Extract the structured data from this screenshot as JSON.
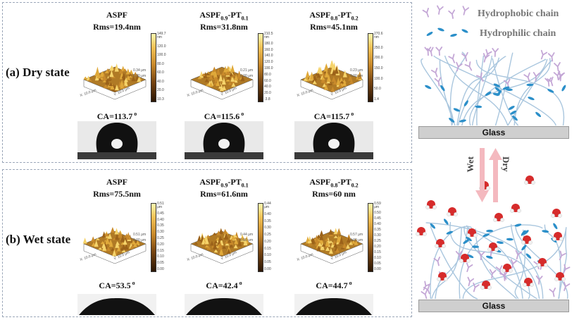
{
  "dry": {
    "label": "(a) Dry state",
    "samples": [
      {
        "name": "ASPF",
        "sub1": "",
        "mid": "",
        "sub2": "",
        "rms": "Rms=19.4nm",
        "ca": "CA=113.7",
        "scale_top": "149.7 nm",
        "ticks": [
          "120.0",
          "100.0",
          "80.0",
          "60.0",
          "40.0",
          "20.0",
          "10.3"
        ],
        "z": "0.34 μm",
        "z0": "0.00 μm",
        "ax": "X: 10.0 μm",
        "ay": "Y: 10.0 μm"
      },
      {
        "name": "ASPF",
        "sub1": "0.9",
        "mid": "-PT",
        "sub2": "0.1",
        "rms": "Rms=31.8nm",
        "ca": "CA=115.6",
        "scale_top": "210.5 nm",
        "ticks": [
          "180.0",
          "160.0",
          "140.0",
          "120.0",
          "100.0",
          "80.0",
          "60.0",
          "40.0",
          "20.0",
          "-3.8"
        ],
        "z": "0.21 μm",
        "z0": "0.00 μm",
        "ax": "X: 10.0 μm",
        "ay": "Y: 10.0 μm"
      },
      {
        "name": "ASPF",
        "sub1": "0.8",
        "mid": "-PT",
        "sub2": "0.2",
        "rms": "Rms=45.1nm",
        "ca": "CA=115.7",
        "scale_top": "270.6 nm",
        "ticks": [
          "250.0",
          "200.0",
          "150.0",
          "100.0",
          "50.0",
          "1.4"
        ],
        "z": "0.23 μm",
        "z0": "0.00 μm",
        "ax": "X: 10.0 μm",
        "ay": "Y: 10.0 μm"
      }
    ]
  },
  "wet": {
    "label": "(b) Wet state",
    "samples": [
      {
        "name": "ASPF",
        "sub1": "",
        "mid": "",
        "sub2": "",
        "rms": "Rms=75.5nm",
        "ca": "CA=53.5",
        "scale_top": "0.51 μm",
        "ticks": [
          "0.45",
          "0.40",
          "0.35",
          "0.30",
          "0.25",
          "0.20",
          "0.15",
          "0.10",
          "0.05",
          "0.00"
        ],
        "z": "0.51 μm",
        "z0": "0.00 μm",
        "ax": "X: 10.0 μm",
        "ay": "Y: 10.0 μm"
      },
      {
        "name": "ASPF",
        "sub1": "0.9",
        "mid": "-PT",
        "sub2": "0.1",
        "rms": "Rms=61.6nm",
        "ca": "CA=42.4",
        "scale_top": "0.44 μm",
        "ticks": [
          "0.40",
          "0.35",
          "0.30",
          "0.25",
          "0.20",
          "0.15",
          "0.10",
          "0.05",
          "0.00"
        ],
        "z": "0.44 μm",
        "z0": "0.00 μm",
        "ax": "X: 10.0 μm",
        "ay": "Y: 10.0 μm"
      },
      {
        "name": "ASPF",
        "sub1": "0.8",
        "mid": "-PT",
        "sub2": "0.2",
        "rms": "Rms=60 nm",
        "ca": "CA=44.7",
        "scale_top": "0.59 μm",
        "ticks": [
          "0.50",
          "0.45",
          "0.40",
          "0.35",
          "0.30",
          "0.25",
          "0.20",
          "0.15",
          "0.10",
          "0.05",
          "0.00"
        ],
        "z": "0.57 μm",
        "z0": "0.00 μm",
        "ax": "X: 10.0 μm",
        "ay": "Y: 10.0 μm"
      }
    ]
  },
  "degree_symbol": "o",
  "legend": {
    "hydrophobic": "Hydrophobic chain",
    "hydrophilic": "Hydrophilic chain",
    "hydrophobic_color": "#c4a7d6",
    "hydrophilic_color": "#2b8fc9"
  },
  "schematic": {
    "glass_label_top": "Glass",
    "glass_label_bottom": "Glass",
    "arrow_wet": "Wet",
    "arrow_dry": "Dry",
    "arrow_color": "#f4b9bf",
    "chain_color": "#a9c6de",
    "water_color": "#d62b2b"
  }
}
